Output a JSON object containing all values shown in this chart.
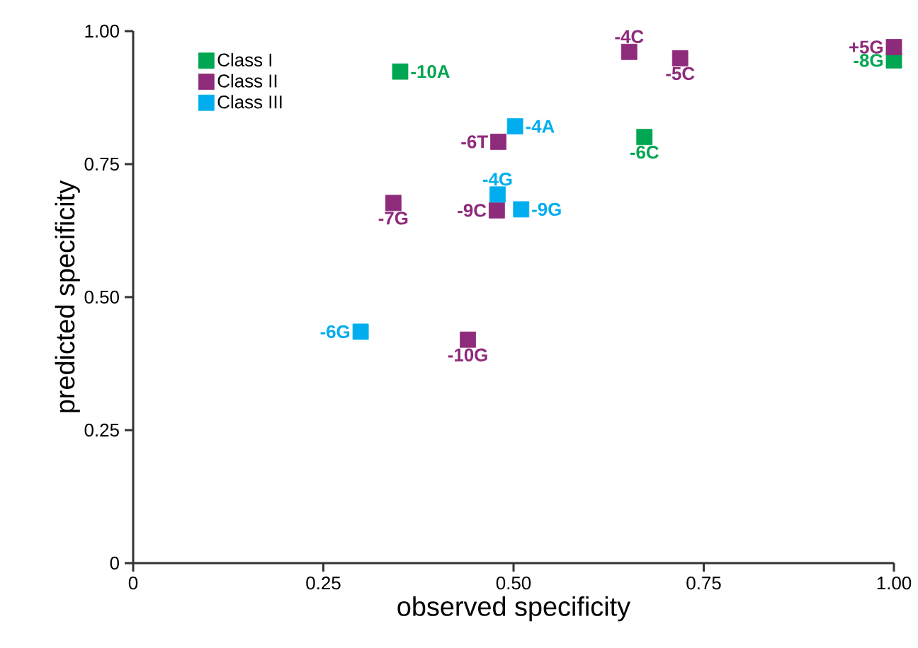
{
  "chart_data": {
    "type": "scatter",
    "xlabel": "observed specificity",
    "ylabel": "predicted specificity",
    "xlim": [
      0,
      1
    ],
    "ylim": [
      0,
      1
    ],
    "xticks": [
      0,
      0.25,
      {
        "value": 0.5,
        "label": "0.50"
      },
      0.75,
      {
        "value": 1,
        "label": "1.00"
      }
    ],
    "yticks": [
      0,
      0.25,
      {
        "value": 0.5,
        "label": "0.50"
      },
      0.75,
      {
        "value": 1,
        "label": "1.00"
      }
    ],
    "marker": "square",
    "legend": "top left",
    "grid": false,
    "series": [
      {
        "name": "Class I",
        "color": "#00a651",
        "x": [
          0.351,
          0.672,
          1.0
        ],
        "values": [
          0.924,
          0.801,
          0.945
        ]
      },
      {
        "name": "Class II",
        "color": "#8e2b7b",
        "x": [
          0.652,
          0.719,
          1.0,
          0.48,
          0.478,
          0.342,
          0.44
        ],
        "values": [
          0.961,
          0.949,
          0.97,
          0.792,
          0.663,
          0.677,
          0.42
        ]
      },
      {
        "name": "Class III",
        "color": "#00aeef",
        "x": [
          0.502,
          0.479,
          0.51,
          0.299
        ],
        "values": [
          0.821,
          0.693,
          0.665,
          0.435
        ]
      }
    ],
    "annotations": [
      {
        "text": "-10A",
        "x": 0.351,
        "y": 0.924
      },
      {
        "text": "-4C",
        "x": 0.652,
        "y": 0.961
      },
      {
        "text": "-5C",
        "x": 0.719,
        "y": 0.949
      },
      {
        "text": "+5G",
        "x": 1.0,
        "y": 0.97
      },
      {
        "text": "-8G",
        "x": 1.0,
        "y": 0.945
      },
      {
        "text": "-6C",
        "x": 0.672,
        "y": 0.801
      },
      {
        "text": "-6T",
        "x": 0.48,
        "y": 0.792
      },
      {
        "text": "-4A",
        "x": 0.502,
        "y": 0.821
      },
      {
        "text": "-4G",
        "x": 0.479,
        "y": 0.693
      },
      {
        "text": "-9C",
        "x": 0.478,
        "y": 0.663
      },
      {
        "text": "-9G",
        "x": 0.51,
        "y": 0.665
      },
      {
        "text": "-7G",
        "x": 0.342,
        "y": 0.677
      },
      {
        "text": "-6G",
        "x": 0.299,
        "y": 0.435
      },
      {
        "text": "-10G",
        "x": 0.44,
        "y": 0.42
      }
    ]
  }
}
